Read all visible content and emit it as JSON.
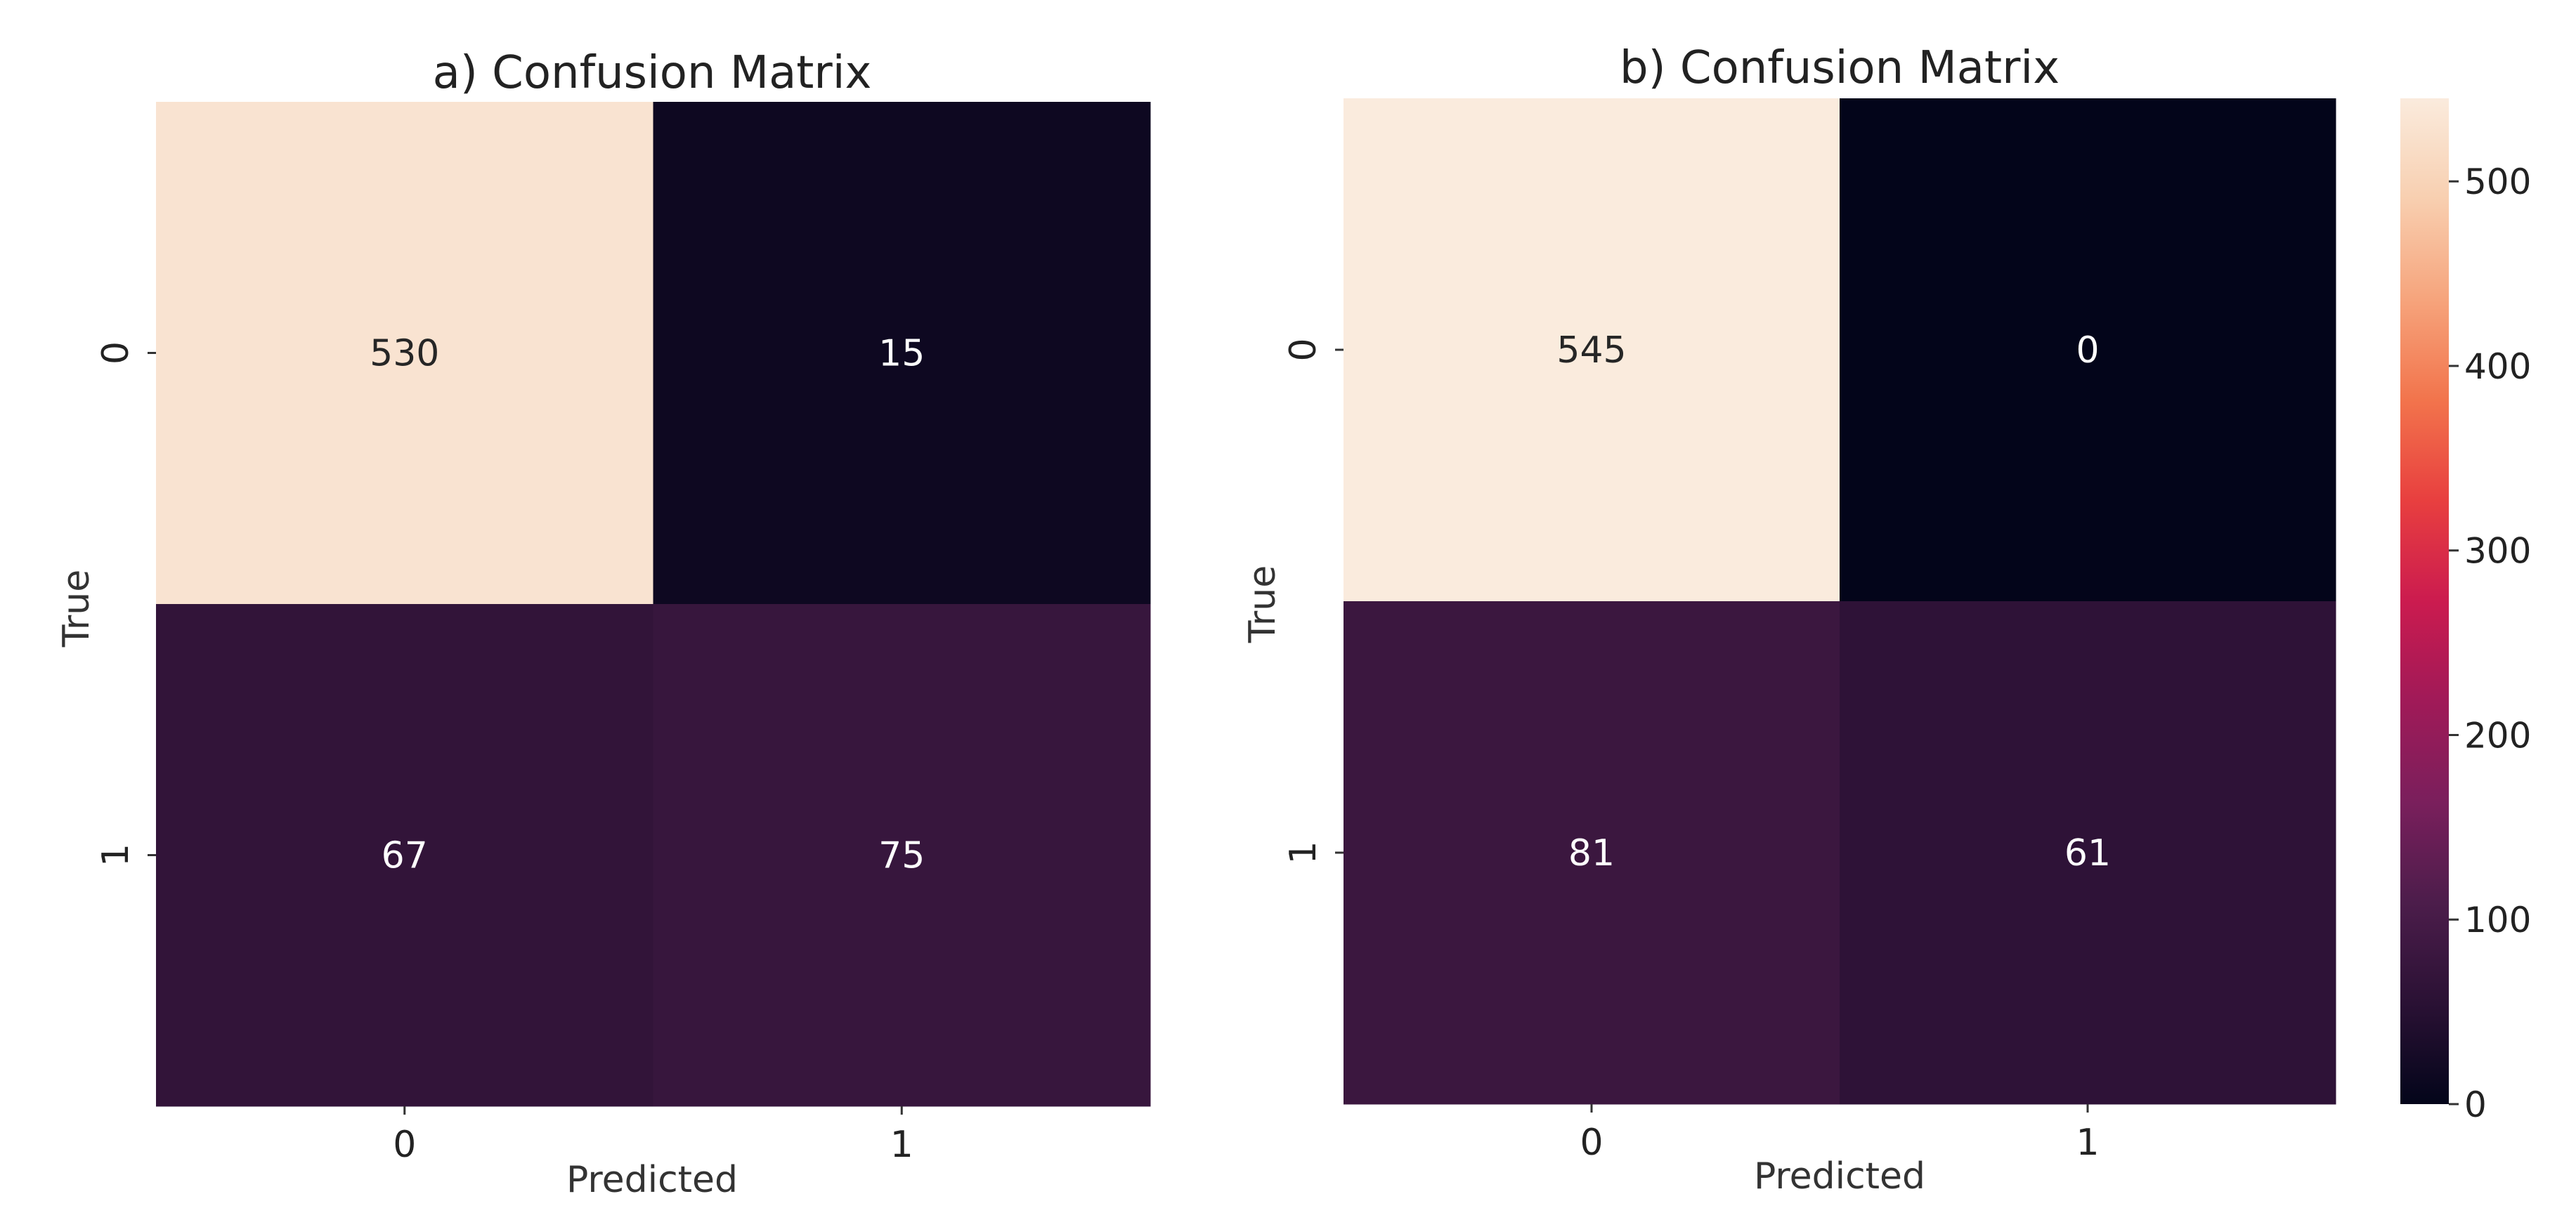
{
  "chart_data": [
    {
      "type": "heatmap",
      "title": "a) Confusion Matrix",
      "xlabel": "Predicted",
      "ylabel": "True",
      "x_categories": [
        "0",
        "1"
      ],
      "y_categories": [
        "0",
        "1"
      ],
      "values": [
        [
          530,
          15
        ],
        [
          67,
          75
        ]
      ],
      "colormap": "rocket"
    },
    {
      "type": "heatmap",
      "title": "b) Confusion Matrix",
      "xlabel": "Predicted",
      "ylabel": "True",
      "x_categories": [
        "0",
        "1"
      ],
      "y_categories": [
        "0",
        "1"
      ],
      "values": [
        [
          545,
          0
        ],
        [
          81,
          61
        ]
      ],
      "colormap": "rocket"
    }
  ],
  "colorbar": {
    "vmin": 0,
    "vmax": 545,
    "ticks": [
      0,
      100,
      200,
      300,
      400,
      500
    ],
    "gradient": [
      "#03051a",
      "#2a1134",
      "#4c1d4b",
      "#7a1f5c",
      "#a01a58",
      "#cb1b4f",
      "#e83f3f",
      "#f2744c",
      "#f6a47c",
      "#f8cfb0",
      "#faebdd"
    ]
  }
}
